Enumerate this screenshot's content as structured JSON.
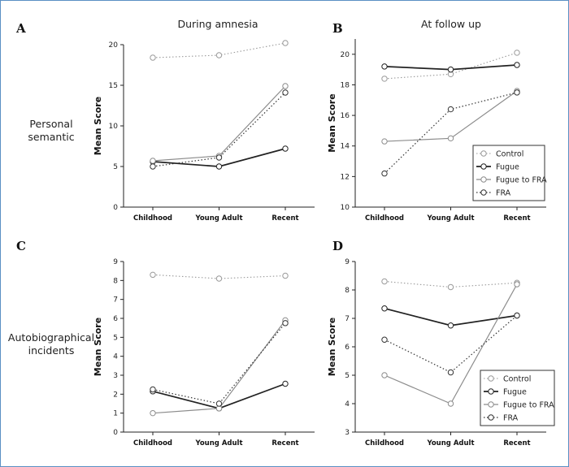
{
  "headings": {
    "left": "During amnesia",
    "right": "At follow up"
  },
  "row_labels": {
    "top": [
      "Personal",
      "semantic"
    ],
    "bottom": [
      "Autobiographical",
      "incidents"
    ]
  },
  "styles": {
    "Control": {
      "color": "#9a9a9a",
      "dash": "1.5,2.5",
      "width": 1.1
    },
    "Fugue": {
      "color": "#222222",
      "dash": "",
      "width": 1.7
    },
    "Fugue to FRA": {
      "color": "#8c8c8c",
      "dash": "",
      "width": 1.2
    },
    "FRA": {
      "color": "#333333",
      "dash": "1.5,2.5",
      "width": 1.2
    }
  },
  "chart_data": [
    {
      "panel": "A",
      "type": "line",
      "categories": [
        "Childhood",
        "Young Adult",
        "Recent"
      ],
      "ylabel": "Mean Score",
      "ylim": [
        0,
        20
      ],
      "yticks": [
        0,
        5,
        10,
        15,
        20
      ],
      "legend": null,
      "series": [
        {
          "name": "Control",
          "values": [
            18.4,
            18.7,
            20.2
          ]
        },
        {
          "name": "Fugue",
          "values": [
            5.6,
            5.0,
            7.2
          ]
        },
        {
          "name": "Fugue to FRA",
          "values": [
            5.7,
            6.3,
            14.9
          ]
        },
        {
          "name": "FRA",
          "values": [
            5.0,
            6.1,
            14.1
          ]
        }
      ]
    },
    {
      "panel": "B",
      "type": "line",
      "categories": [
        "Childhood",
        "Young Adult",
        "Recent"
      ],
      "ylabel": "Mean Score",
      "ylim": [
        10,
        21
      ],
      "yticks": [
        10,
        12,
        14,
        16,
        18,
        20
      ],
      "legend": "bottom-right",
      "series": [
        {
          "name": "Control",
          "values": [
            18.4,
            18.7,
            20.1
          ]
        },
        {
          "name": "Fugue",
          "values": [
            19.2,
            19.0,
            19.3
          ]
        },
        {
          "name": "Fugue to FRA",
          "values": [
            14.3,
            14.5,
            17.6
          ]
        },
        {
          "name": "FRA",
          "values": [
            12.2,
            16.4,
            17.5
          ]
        }
      ]
    },
    {
      "panel": "C",
      "type": "line",
      "categories": [
        "Childhood",
        "Young Adult",
        "Recent"
      ],
      "ylabel": "Mean Score",
      "ylim": [
        0,
        9
      ],
      "yticks": [
        0,
        1,
        2,
        3,
        4,
        5,
        6,
        7,
        8,
        9
      ],
      "legend": null,
      "series": [
        {
          "name": "Control",
          "values": [
            8.3,
            8.1,
            8.25
          ]
        },
        {
          "name": "Fugue",
          "values": [
            2.15,
            1.25,
            2.55
          ]
        },
        {
          "name": "Fugue to FRA",
          "values": [
            1.0,
            1.25,
            5.9
          ]
        },
        {
          "name": "FRA",
          "values": [
            2.25,
            1.5,
            5.75
          ]
        }
      ]
    },
    {
      "panel": "D",
      "type": "line",
      "categories": [
        "Childhood",
        "Young Adult",
        "Recent"
      ],
      "ylabel": "Mean Score",
      "ylim": [
        3,
        9
      ],
      "yticks": [
        3,
        4,
        5,
        6,
        7,
        8,
        9
      ],
      "legend": "bottom-right",
      "series": [
        {
          "name": "Control",
          "values": [
            8.3,
            8.1,
            8.25
          ]
        },
        {
          "name": "Fugue",
          "values": [
            7.35,
            6.75,
            7.1
          ]
        },
        {
          "name": "Fugue to FRA",
          "values": [
            5.0,
            4.0,
            8.2
          ]
        },
        {
          "name": "FRA",
          "values": [
            6.25,
            5.1,
            7.1
          ]
        }
      ]
    }
  ]
}
